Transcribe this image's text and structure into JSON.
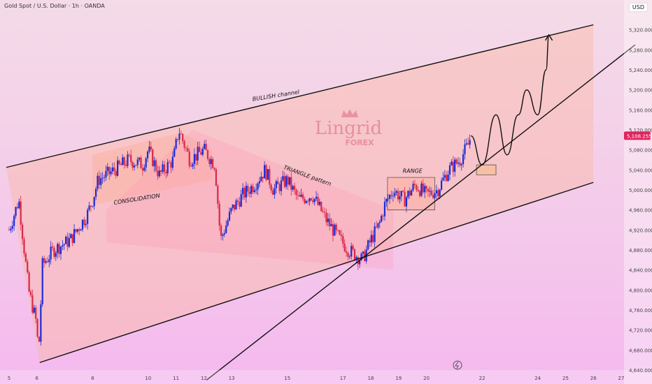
{
  "header": {
    "symbol_line": "Gold Spot / U.S. Dollar · 1h · OANDA",
    "currency": "USD"
  },
  "watermark": {
    "brand": "Lingrid",
    "sub": "FOREX"
  },
  "colors": {
    "up": "#1d2bd6",
    "down": "#d8284a",
    "line": "#111111",
    "price_tag": "#e0245e",
    "watermark": "#e38796"
  },
  "chart_data": {
    "type": "candlestick",
    "x_unit": "day of month",
    "xlim": [
      5,
      27
    ],
    "ylim": [
      4640,
      5360
    ],
    "x_ticks": [
      5,
      6,
      8,
      10,
      11,
      12,
      13,
      15,
      17,
      18,
      19,
      20,
      22,
      24,
      25,
      26,
      27
    ],
    "y_ticks": [
      4640,
      4680,
      4720,
      4760,
      4800,
      4840,
      4880,
      4920,
      4960,
      5000,
      5040,
      5080,
      5120,
      5160,
      5200,
      5240,
      5280,
      5320
    ],
    "current_price": "5,108.255",
    "price_path": [
      [
        5.0,
        4920
      ],
      [
        5.35,
        4980
      ],
      [
        5.7,
        4800
      ],
      [
        6.0,
        4730
      ],
      [
        6.05,
        4660
      ],
      [
        6.2,
        4850
      ],
      [
        6.6,
        4880
      ],
      [
        7.2,
        4900
      ],
      [
        7.8,
        4950
      ],
      [
        8.0,
        4980
      ],
      [
        8.2,
        5020
      ],
      [
        8.8,
        5040
      ],
      [
        9.3,
        5060
      ],
      [
        9.8,
        5050
      ],
      [
        10.0,
        5080
      ],
      [
        10.4,
        5030
      ],
      [
        10.9,
        5060
      ],
      [
        11.1,
        5120
      ],
      [
        11.5,
        5060
      ],
      [
        12.0,
        5080
      ],
      [
        12.4,
        5050
      ],
      [
        12.6,
        4900
      ],
      [
        13.0,
        4960
      ],
      [
        13.4,
        4990
      ],
      [
        13.8,
        5010
      ],
      [
        14.2,
        5040
      ],
      [
        14.5,
        5000
      ],
      [
        15.0,
        5020
      ],
      [
        15.4,
        4980
      ],
      [
        15.9,
        4990
      ],
      [
        16.4,
        4940
      ],
      [
        16.9,
        4900
      ],
      [
        17.2,
        4880
      ],
      [
        17.7,
        4860
      ],
      [
        18.0,
        4900
      ],
      [
        18.3,
        4930
      ],
      [
        18.5,
        4970
      ],
      [
        18.8,
        5000
      ],
      [
        19.2,
        4980
      ],
      [
        19.6,
        5010
      ],
      [
        20.0,
        4990
      ],
      [
        20.4,
        5000
      ],
      [
        20.8,
        5040
      ],
      [
        21.2,
        5060
      ],
      [
        21.5,
        5090
      ],
      [
        21.6,
        5108
      ]
    ],
    "projection": [
      [
        21.6,
        5108
      ],
      [
        22.0,
        5050
      ],
      [
        22.5,
        5150
      ],
      [
        22.9,
        5070
      ],
      [
        23.3,
        5150
      ],
      [
        23.6,
        5200
      ],
      [
        24.0,
        5150
      ],
      [
        24.3,
        5240
      ],
      [
        24.4,
        5310
      ]
    ],
    "trendlines": [
      {
        "name": "channel-top",
        "points": [
          [
            4.9,
            5045
          ],
          [
            26.0,
            5330
          ]
        ]
      },
      {
        "name": "channel-bottom",
        "points": [
          [
            6.1,
            4655
          ],
          [
            26.0,
            5015
          ]
        ]
      },
      {
        "name": "rising-support",
        "points": [
          [
            12.1,
            4620
          ],
          [
            27.5,
            5290
          ]
        ]
      }
    ],
    "zones": [
      {
        "name": "bullish-channel",
        "points": [
          [
            4.9,
            5045
          ],
          [
            26.0,
            5330
          ],
          [
            26.0,
            5015
          ],
          [
            6.1,
            4655
          ]
        ],
        "fill": "rgba(250,185,165,0.45)"
      },
      {
        "name": "consolidation",
        "points": [
          [
            8.0,
            5070
          ],
          [
            11.2,
            5115
          ],
          [
            12.3,
            5080
          ],
          [
            12.3,
            5020
          ],
          [
            8.0,
            4970
          ]
        ],
        "fill": "rgba(255,170,140,0.35)"
      },
      {
        "name": "triangle",
        "points": [
          [
            8.5,
            4960
          ],
          [
            11.6,
            5120
          ],
          [
            18.8,
            4960
          ],
          [
            18.8,
            4840
          ],
          [
            8.5,
            4895
          ]
        ],
        "fill": "rgba(255,150,180,0.28)"
      },
      {
        "name": "range",
        "points": [
          [
            18.6,
            5025
          ],
          [
            20.3,
            5025
          ],
          [
            20.3,
            4960
          ],
          [
            18.6,
            4960
          ]
        ],
        "fill": "rgba(255,170,150,0.45)",
        "stroke": true
      },
      {
        "name": "retest-box",
        "points": [
          [
            21.8,
            5050
          ],
          [
            22.5,
            5050
          ],
          [
            22.5,
            5030
          ],
          [
            21.8,
            5030
          ]
        ],
        "fill": "rgba(250,190,150,0.7)",
        "stroke": true
      }
    ],
    "annotations": [
      {
        "text": "BULLISH channel",
        "x": 14.6,
        "y": 5185,
        "angle": -9
      },
      {
        "text": "CONSOLIDATION",
        "x": 9.6,
        "y": 4978,
        "angle": -9
      },
      {
        "text": "TRIANGLE pattern",
        "x": 15.7,
        "y": 5025,
        "angle": 20
      },
      {
        "text": "RANGE",
        "x": 19.5,
        "y": 5034,
        "angle": 0
      }
    ]
  }
}
